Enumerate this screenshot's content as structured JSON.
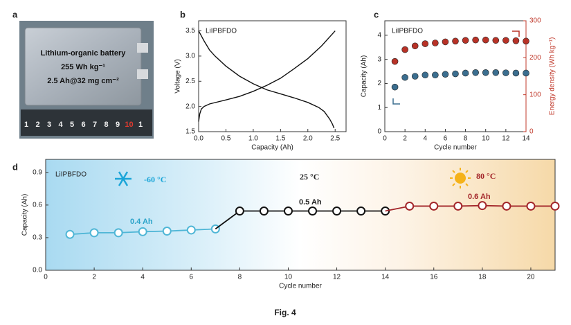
{
  "panel_labels": [
    "a",
    "b",
    "c",
    "d"
  ],
  "photo": {
    "lines": [
      "Lithium-organic battery",
      "255 Wh kg⁻¹",
      "2.5 Ah@32 mg cm⁻²"
    ],
    "ruler_labels": [
      "1",
      "2",
      "3",
      "4",
      "5",
      "6",
      "7",
      "8",
      "9",
      "10",
      "1"
    ]
  },
  "caption": "Fig. 4",
  "chart_data": [
    {
      "type": "line",
      "annotations": [
        "LiIPBFDO"
      ],
      "xlabel": "Capacity (Ah)",
      "ylabel": "Voltage (V)",
      "xlim": [
        0,
        2.7
      ],
      "ylim": [
        1.5,
        3.7
      ],
      "xticks": [
        {
          "value": 0,
          "label": "0.0"
        },
        0.5,
        {
          "value": 1,
          "label": "1.0"
        },
        1.5,
        {
          "value": 2,
          "label": "2.0"
        },
        2.5
      ],
      "yticks": [
        1.5,
        {
          "value": 2,
          "label": "2.0"
        },
        2.5,
        {
          "value": 3,
          "label": "3.0"
        },
        3.5
      ],
      "series": [
        {
          "color": "#111111",
          "line": true,
          "x": [
            0,
            0.05,
            0.1,
            0.2,
            0.3,
            0.5,
            0.75,
            1.0,
            1.25,
            1.5,
            1.75,
            2.0,
            2.2,
            2.3,
            2.4,
            2.45,
            2.48
          ],
          "values": [
            3.5,
            3.4,
            3.3,
            3.12,
            3.0,
            2.8,
            2.6,
            2.45,
            2.33,
            2.25,
            2.17,
            2.08,
            1.98,
            1.9,
            1.75,
            1.65,
            1.57
          ]
        },
        {
          "color": "#111111",
          "line": true,
          "x": [
            0,
            0.02,
            0.05,
            0.1,
            0.2,
            0.5,
            0.75,
            1.0,
            1.25,
            1.5,
            1.75,
            2.0,
            2.25,
            2.5
          ],
          "values": [
            1.7,
            1.85,
            1.95,
            2.0,
            2.05,
            2.13,
            2.2,
            2.3,
            2.42,
            2.56,
            2.75,
            2.95,
            3.2,
            3.5
          ]
        }
      ]
    },
    {
      "type": "scatter",
      "annotations": [
        "LiIPBFDO"
      ],
      "xlabel": "Cycle number",
      "ylabel": "Capacity (Ah)",
      "y2label": "Energy density (Wh kg⁻¹)",
      "xlim": [
        0,
        14
      ],
      "ylim": [
        0,
        4.6
      ],
      "y2lim": [
        0,
        300
      ],
      "xticks": [
        0,
        2,
        4,
        6,
        8,
        10,
        12,
        14
      ],
      "yticks": [
        0,
        1,
        2,
        3,
        4
      ],
      "y2ticks": [
        0,
        100,
        200,
        300
      ],
      "y2color": "#c0392b",
      "series": [
        {
          "color": "#3b6e8f",
          "marker": "filled",
          "x": [
            1,
            2,
            3,
            4,
            5,
            6,
            7,
            8,
            9,
            10,
            11,
            12,
            13,
            14
          ],
          "values": [
            1.85,
            2.25,
            2.3,
            2.35,
            2.35,
            2.38,
            2.4,
            2.43,
            2.45,
            2.45,
            2.45,
            2.44,
            2.43,
            2.43
          ]
        },
        {
          "color": "#b83227",
          "marker": "filled",
          "axis": "y2",
          "x": [
            1,
            2,
            3,
            4,
            5,
            6,
            7,
            8,
            9,
            10,
            11,
            12,
            13,
            14
          ],
          "values": [
            190,
            222,
            232,
            238,
            240,
            243,
            245,
            247,
            248,
            248,
            247,
            247,
            246,
            245
          ]
        }
      ]
    },
    {
      "type": "line",
      "annotations": [
        "LiIPBFDO",
        "-60 °C",
        "25 °C",
        "80 °C",
        "0.4 Ah",
        "0.5 Ah",
        "0.6 Ah"
      ],
      "xlabel": "Cycle number",
      "ylabel": "Capacity (Ah)",
      "xlim": [
        0,
        21
      ],
      "ylim": [
        0,
        1.02
      ],
      "xticks": [
        0,
        2,
        4,
        6,
        8,
        10,
        12,
        14,
        16,
        18,
        20
      ],
      "yticks": [
        {
          "value": 0,
          "label": "0.0"
        },
        0.3,
        0.6,
        0.9
      ],
      "series": [
        {
          "color": "#4fb6d6",
          "line": true,
          "marker": "open",
          "x": [
            1,
            2,
            3,
            4,
            5,
            6,
            7
          ],
          "values": [
            0.33,
            0.345,
            0.345,
            0.355,
            0.36,
            0.37,
            0.38
          ]
        },
        {
          "color": "#111111",
          "line": true,
          "marker": "open",
          "x": [
            8,
            9,
            10,
            11,
            12,
            13,
            14
          ],
          "values": [
            0.545,
            0.545,
            0.545,
            0.545,
            0.545,
            0.545,
            0.545
          ]
        },
        {
          "color": "#a3262a",
          "line": true,
          "marker": "open",
          "x": [
            15,
            16,
            17,
            18,
            19,
            20,
            21
          ],
          "values": [
            0.59,
            0.59,
            0.59,
            0.595,
            0.59,
            0.59,
            0.59
          ]
        }
      ]
    }
  ]
}
